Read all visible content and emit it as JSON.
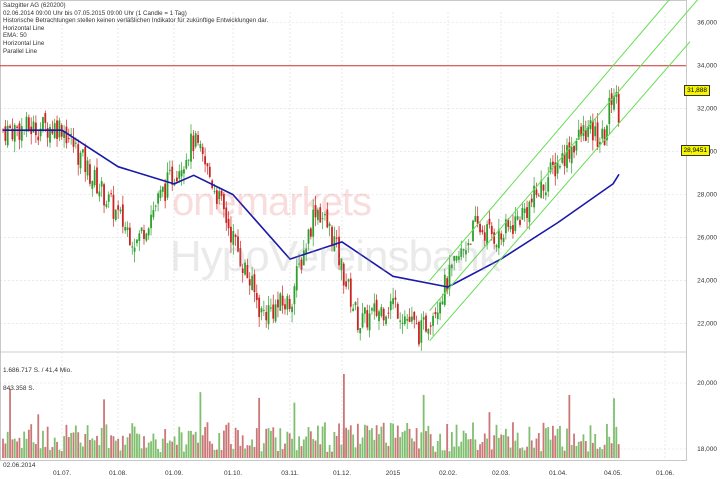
{
  "header": {
    "instrument": "Salzgitter AG (620200)",
    "period": "02.06.2014 09:00 Uhr bis 07.05.2015 09:00 Uhr (1 Candle = 1 Tag)",
    "disclaimer": "Historische Betrachtungen stellen keinen verläßlichen Indikator für zukünftige Entwicklungen dar.",
    "indicators": [
      "Horizontal Line",
      "EMA: 50",
      "Horizontal Line",
      "Parallel Line"
    ]
  },
  "watermark": {
    "part1": "onemarkets",
    "part2": "HypoVereinsbank"
  },
  "volume_labels": {
    "top": "1.686.717 S. / 41,4 Mio.",
    "mid": "843.358 S.",
    "date": "02.06.2014"
  },
  "price_tags": {
    "last": "31,888",
    "ema": "28,9451"
  },
  "colors": {
    "up": "#2ca02c",
    "down": "#cc2222",
    "ema": "#1a1aa8",
    "channel": "#66dd55",
    "hline": "#cc3333",
    "grid": "#dddddd"
  },
  "chart_data": {
    "type": "candlestick",
    "title": "Salzgitter AG (620200)",
    "y_price_ticks": [
      "36,000",
      "34,000",
      "32,000",
      "30,000",
      "28,000",
      "26,000",
      "24,000",
      "22,000"
    ],
    "y_price_values": [
      36,
      34,
      32,
      30,
      28,
      26,
      24,
      22
    ],
    "y_volume_ticks": [
      "20,000",
      "18,000"
    ],
    "x_ticks": [
      "01.07.",
      "01.08.",
      "01.09.",
      "01.10.",
      "03.11.",
      "01.12.",
      "2015",
      "02.02.",
      "02.03.",
      "01.04.",
      "04.05.",
      "01.06."
    ],
    "horizontal_line": 34.0,
    "last_price": 31.888,
    "ema50_last": 28.9451,
    "close_path": [
      {
        "date": "02.06.2014",
        "close": 31.0
      },
      {
        "date": "01.07.",
        "close": 31.2
      },
      {
        "date": "15.07.",
        "close": 29.0
      },
      {
        "date": "01.08.",
        "close": 27.0
      },
      {
        "date": "10.08.",
        "close": 25.8
      },
      {
        "date": "20.08.",
        "close": 27.5
      },
      {
        "date": "01.09.",
        "close": 29.0
      },
      {
        "date": "10.09.",
        "close": 30.5
      },
      {
        "date": "20.09.",
        "close": 28.5
      },
      {
        "date": "01.10.",
        "close": 26.0
      },
      {
        "date": "15.10.",
        "close": 22.5
      },
      {
        "date": "03.11.",
        "close": 23.0
      },
      {
        "date": "15.11.",
        "close": 27.5
      },
      {
        "date": "25.11.",
        "close": 26.0
      },
      {
        "date": "01.12.",
        "close": 24.5
      },
      {
        "date": "10.12.",
        "close": 22.0
      },
      {
        "date": "2015",
        "close": 23.0
      },
      {
        "date": "15.01.",
        "close": 21.5
      },
      {
        "date": "02.02.",
        "close": 24.0
      },
      {
        "date": "15.02.",
        "close": 26.5
      },
      {
        "date": "02.03.",
        "close": 26.0
      },
      {
        "date": "15.03.",
        "close": 27.5
      },
      {
        "date": "01.04.",
        "close": 29.5
      },
      {
        "date": "15.04.",
        "close": 31.0
      },
      {
        "date": "25.04.",
        "close": 30.5
      },
      {
        "date": "04.05.",
        "close": 33.0
      },
      {
        "date": "07.05.",
        "close": 31.888
      }
    ],
    "ema50": [
      {
        "date": "02.06.2014",
        "value": 31.0
      },
      {
        "date": "01.07.",
        "value": 31.0
      },
      {
        "date": "01.08.",
        "value": 29.3
      },
      {
        "date": "01.09.",
        "value": 28.5
      },
      {
        "date": "10.09.",
        "value": 28.9
      },
      {
        "date": "01.10.",
        "value": 28.0
      },
      {
        "date": "03.11.",
        "value": 25.0
      },
      {
        "date": "01.12.",
        "value": 25.8
      },
      {
        "date": "2015",
        "value": 24.2
      },
      {
        "date": "02.02.",
        "value": 23.7
      },
      {
        "date": "02.03.",
        "value": 25.0
      },
      {
        "date": "01.04.",
        "value": 26.7
      },
      {
        "date": "04.05.",
        "value": 28.5
      },
      {
        "date": "07.05.",
        "value": 28.9451
      }
    ],
    "channel": [
      {
        "from": {
          "date": "20.01.",
          "price": 24.0
        },
        "to": {
          "date": "04.05.",
          "price": 34.0
        }
      },
      {
        "from": {
          "date": "20.01.",
          "price": 21.2
        },
        "to": {
          "date": "04.05.",
          "price": 31.0
        }
      }
    ]
  }
}
